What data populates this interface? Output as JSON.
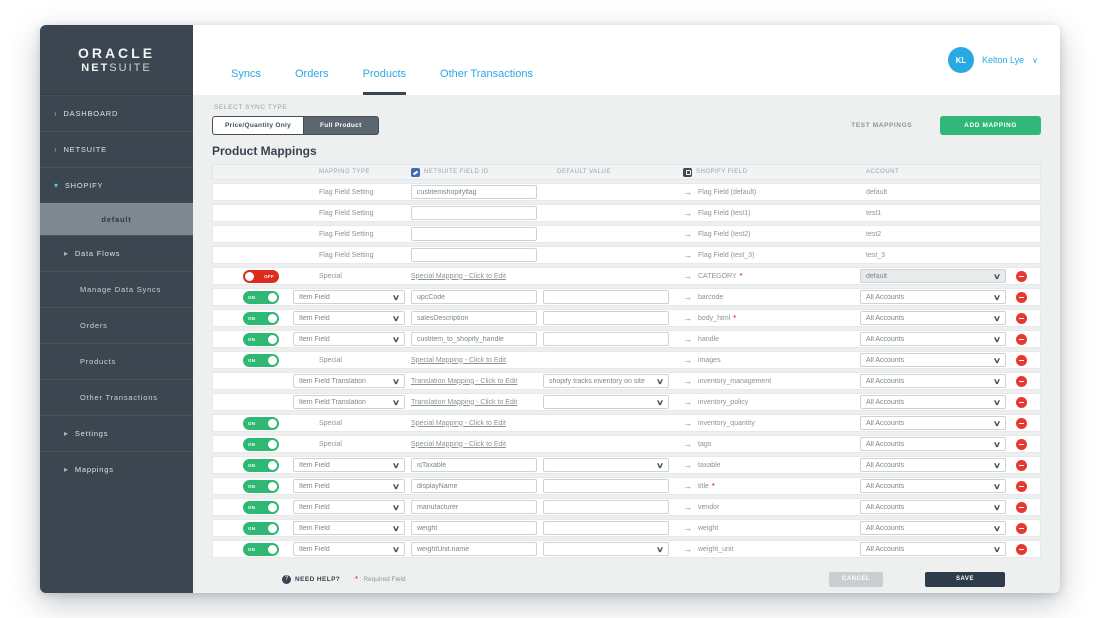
{
  "brand": {
    "oracle": "ORACLE",
    "net": "NET",
    "suite": "SUITE"
  },
  "user": {
    "initials": "KL",
    "name": "Kelton Lye"
  },
  "tabs": [
    {
      "label": "Syncs",
      "active": false
    },
    {
      "label": "Orders",
      "active": false
    },
    {
      "label": "Products",
      "active": true
    },
    {
      "label": "Other Transactions",
      "active": false
    }
  ],
  "sidebar": {
    "items": [
      {
        "label": "DASHBOARD",
        "type": "top",
        "chevron": "right"
      },
      {
        "label": "NETSUITE",
        "type": "top",
        "chevron": "right"
      },
      {
        "label": "SHOPIFY",
        "type": "top",
        "chevron": "down",
        "active": true
      },
      {
        "label": "default",
        "type": "store"
      },
      {
        "label": "Data Flows",
        "type": "group",
        "chevron": "group"
      },
      {
        "label": "Manage Data Syncs",
        "type": "sub"
      },
      {
        "label": "Orders",
        "type": "sub"
      },
      {
        "label": "Products",
        "type": "sub"
      },
      {
        "label": "Other Transactions",
        "type": "sub"
      },
      {
        "label": "Settings",
        "type": "group",
        "chevron": "group"
      },
      {
        "label": "Mappings",
        "type": "group",
        "chevron": "group"
      }
    ]
  },
  "toolbar": {
    "select_sync_type": "SELECT SYNC TYPE",
    "price_quantity_label": "Price/Quantity Only",
    "full_product_label": "Full Product",
    "test_mappings_label": "TEST MAPPINGS",
    "add_mapping_label": "ADD MAPPING"
  },
  "table": {
    "title": "Product Mappings",
    "columns": [
      "MAPPING TYPE",
      "NETSUITE FIELD ID",
      "DEFAULT VALUE",
      "SHOPIFY FIELD",
      "ACCOUNT"
    ],
    "rows": [
      {
        "toggle": null,
        "mapping_type": {
          "kind": "text",
          "value": "Flag Field Setting"
        },
        "netsuite_field": {
          "kind": "input",
          "value": "custitemshopifyflag"
        },
        "default_value": {
          "kind": "none",
          "value": ""
        },
        "shopify_field": {
          "name": "Flag Field (default)",
          "required": false
        },
        "account": {
          "kind": "text",
          "value": "default"
        },
        "removable": false
      },
      {
        "toggle": null,
        "mapping_type": {
          "kind": "text",
          "value": "Flag Field Setting"
        },
        "netsuite_field": {
          "kind": "input",
          "value": ""
        },
        "default_value": {
          "kind": "none",
          "value": ""
        },
        "shopify_field": {
          "name": "Flag Field (test1)",
          "required": false
        },
        "account": {
          "kind": "text",
          "value": "test1"
        },
        "removable": false
      },
      {
        "toggle": null,
        "mapping_type": {
          "kind": "text",
          "value": "Flag Field Setting"
        },
        "netsuite_field": {
          "kind": "input",
          "value": ""
        },
        "default_value": {
          "kind": "none",
          "value": ""
        },
        "shopify_field": {
          "name": "Flag Field (test2)",
          "required": false
        },
        "account": {
          "kind": "text",
          "value": "test2"
        },
        "removable": false
      },
      {
        "toggle": null,
        "mapping_type": {
          "kind": "text",
          "value": "Flag Field Setting"
        },
        "netsuite_field": {
          "kind": "input",
          "value": ""
        },
        "default_value": {
          "kind": "none",
          "value": ""
        },
        "shopify_field": {
          "name": "Flag Field (test_3)",
          "required": false
        },
        "account": {
          "kind": "text",
          "value": "test_3"
        },
        "removable": false
      },
      {
        "toggle": "off",
        "mapping_type": {
          "kind": "text",
          "value": "Special"
        },
        "netsuite_field": {
          "kind": "link",
          "value": "Special Mapping - Click to Edit"
        },
        "default_value": {
          "kind": "none",
          "value": ""
        },
        "shopify_field": {
          "name": "CATEGORY",
          "required": true
        },
        "account": {
          "kind": "select_disabled",
          "value": "default"
        },
        "removable": true
      },
      {
        "toggle": "on",
        "mapping_type": {
          "kind": "select",
          "value": "Item Field"
        },
        "netsuite_field": {
          "kind": "input",
          "value": "upcCode"
        },
        "default_value": {
          "kind": "input",
          "value": ""
        },
        "shopify_field": {
          "name": "barcode",
          "required": false
        },
        "account": {
          "kind": "select",
          "value": "All Accounts"
        },
        "removable": true
      },
      {
        "toggle": "on",
        "mapping_type": {
          "kind": "select",
          "value": "Item Field"
        },
        "netsuite_field": {
          "kind": "input",
          "value": "salesDescription"
        },
        "default_value": {
          "kind": "input",
          "value": ""
        },
        "shopify_field": {
          "name": "body_html",
          "required": true
        },
        "account": {
          "kind": "select",
          "value": "All Accounts"
        },
        "removable": true
      },
      {
        "toggle": "on",
        "mapping_type": {
          "kind": "select",
          "value": "Item Field"
        },
        "netsuite_field": {
          "kind": "input",
          "value": "custitem_to_shopify_handle"
        },
        "default_value": {
          "kind": "input",
          "value": ""
        },
        "shopify_field": {
          "name": "handle",
          "required": false
        },
        "account": {
          "kind": "select",
          "value": "All Accounts"
        },
        "removable": true
      },
      {
        "toggle": "on",
        "mapping_type": {
          "kind": "text",
          "value": "Special"
        },
        "netsuite_field": {
          "kind": "link",
          "value": "Special Mapping - Click to Edit"
        },
        "default_value": {
          "kind": "none",
          "value": ""
        },
        "shopify_field": {
          "name": "images",
          "required": false
        },
        "account": {
          "kind": "select",
          "value": "All Accounts"
        },
        "removable": true
      },
      {
        "toggle": null,
        "mapping_type": {
          "kind": "select",
          "value": "Item Field Translation"
        },
        "netsuite_field": {
          "kind": "link",
          "value": "Translation Mapping - Click to Edit"
        },
        "default_value": {
          "kind": "select",
          "value": "shopify tracks inventory on site"
        },
        "shopify_field": {
          "name": "inventory_management",
          "required": false
        },
        "account": {
          "kind": "select",
          "value": "All Accounts"
        },
        "removable": true
      },
      {
        "toggle": null,
        "mapping_type": {
          "kind": "select",
          "value": "Item Field Translation"
        },
        "netsuite_field": {
          "kind": "link",
          "value": "Translation Mapping - Click to Edit"
        },
        "default_value": {
          "kind": "select",
          "value": ""
        },
        "shopify_field": {
          "name": "inventory_policy",
          "required": false
        },
        "account": {
          "kind": "select",
          "value": "All Accounts"
        },
        "removable": true
      },
      {
        "toggle": "on",
        "mapping_type": {
          "kind": "text",
          "value": "Special"
        },
        "netsuite_field": {
          "kind": "link",
          "value": "Special Mapping - Click to Edit"
        },
        "default_value": {
          "kind": "none",
          "value": ""
        },
        "shopify_field": {
          "name": "inventory_quantity",
          "required": false
        },
        "account": {
          "kind": "select",
          "value": "All Accounts"
        },
        "removable": true
      },
      {
        "toggle": "on",
        "mapping_type": {
          "kind": "text",
          "value": "Special"
        },
        "netsuite_field": {
          "kind": "link",
          "value": "Special Mapping - Click to Edit"
        },
        "default_value": {
          "kind": "none",
          "value": ""
        },
        "shopify_field": {
          "name": "tags",
          "required": false
        },
        "account": {
          "kind": "select",
          "value": "All Accounts"
        },
        "removable": true
      },
      {
        "toggle": "on",
        "mapping_type": {
          "kind": "select",
          "value": "Item Field"
        },
        "netsuite_field": {
          "kind": "input",
          "value": "isTaxable"
        },
        "default_value": {
          "kind": "select",
          "value": ""
        },
        "shopify_field": {
          "name": "taxable",
          "required": false
        },
        "account": {
          "kind": "select",
          "value": "All Accounts"
        },
        "removable": true
      },
      {
        "toggle": "on",
        "mapping_type": {
          "kind": "select",
          "value": "Item Field"
        },
        "netsuite_field": {
          "kind": "input",
          "value": "displayName"
        },
        "default_value": {
          "kind": "input",
          "value": ""
        },
        "shopify_field": {
          "name": "title",
          "required": true
        },
        "account": {
          "kind": "select",
          "value": "All Accounts"
        },
        "removable": true
      },
      {
        "toggle": "on",
        "mapping_type": {
          "kind": "select",
          "value": "Item Field"
        },
        "netsuite_field": {
          "kind": "input",
          "value": "manufacturer"
        },
        "default_value": {
          "kind": "input",
          "value": ""
        },
        "shopify_field": {
          "name": "vendor",
          "required": false
        },
        "account": {
          "kind": "select",
          "value": "All Accounts"
        },
        "removable": true
      },
      {
        "toggle": "on",
        "mapping_type": {
          "kind": "select",
          "value": "Item Field"
        },
        "netsuite_field": {
          "kind": "input",
          "value": "weight"
        },
        "default_value": {
          "kind": "input",
          "value": ""
        },
        "shopify_field": {
          "name": "weight",
          "required": false
        },
        "account": {
          "kind": "select",
          "value": "All Accounts"
        },
        "removable": true
      },
      {
        "toggle": "on",
        "mapping_type": {
          "kind": "select",
          "value": "Item Field"
        },
        "netsuite_field": {
          "kind": "input",
          "value": "weightUnit.name"
        },
        "default_value": {
          "kind": "select",
          "value": ""
        },
        "shopify_field": {
          "name": "weight_unit",
          "required": false
        },
        "account": {
          "kind": "select",
          "value": "All Accounts"
        },
        "removable": true
      }
    ]
  },
  "toggle_labels": {
    "on": "ON",
    "off": "OFF"
  },
  "icons": {
    "chevron_right": "›",
    "chevron_down": "▾",
    "chevron_group": "▸",
    "user_caret": "∨",
    "select_caret": "∨",
    "mapping_arrow": "→",
    "need_help": "?"
  },
  "footer": {
    "need_help": "NEED HELP?",
    "required_star": "*",
    "required_note": ": Required Field",
    "cancel_label": "CANCEL",
    "save_label": "SAVE"
  },
  "colors": {
    "sidebar": "#3c4650",
    "accent_blue": "#29a9e1",
    "green": "#2eb873",
    "red": "#e6392e",
    "toggle_off_red": "#df2b1e",
    "content_bg": "#eef0f0",
    "save_button": "#2e3b4a",
    "netsuite_icon_blue": "#3e6db4"
  }
}
